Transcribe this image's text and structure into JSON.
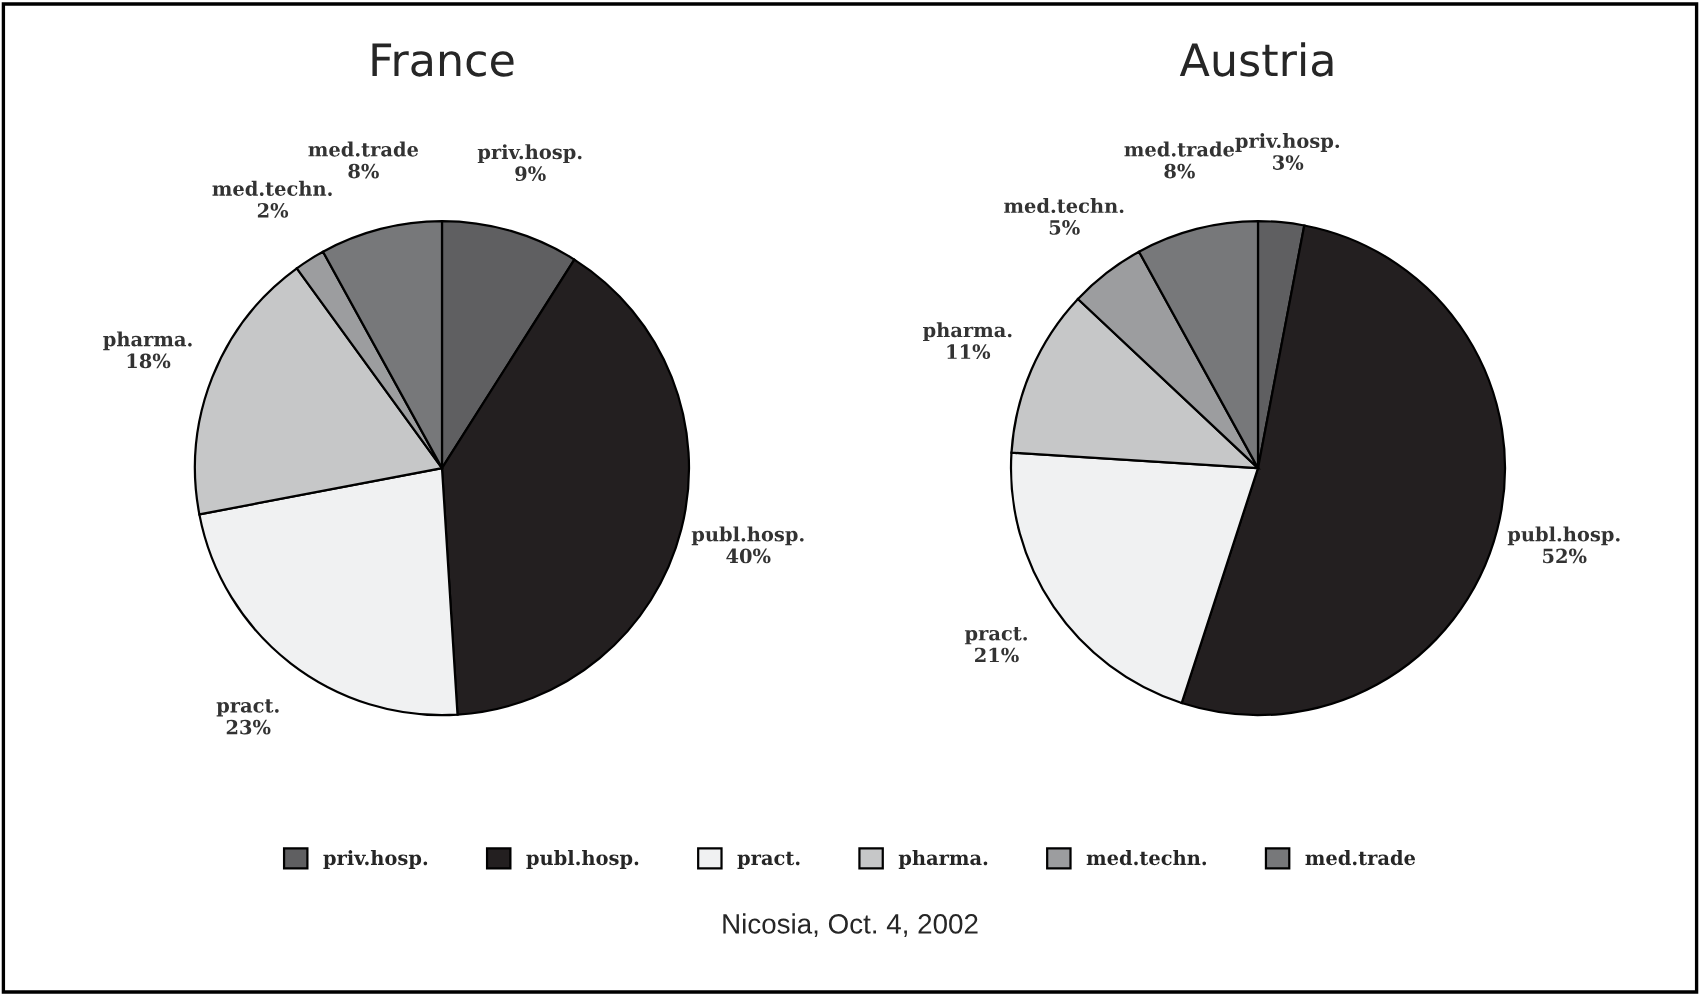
{
  "chart_data": [
    {
      "type": "pie",
      "title": "France",
      "categories": [
        "priv.hosp.",
        "publ.hosp.",
        "pract.",
        "pharma.",
        "med.techn.",
        "med.trade"
      ],
      "values": [
        9,
        40,
        23,
        18,
        2,
        8
      ],
      "value_labels": [
        "9%",
        "40%",
        "23%",
        "18%",
        "2%",
        "8%"
      ],
      "colors": [
        "#5f5f61",
        "#231f20",
        "#f0f1f2",
        "#c6c7c8",
        "#9c9d9f",
        "#77787a"
      ],
      "legend": "bottom",
      "annotations": [
        "Nicosia, Oct. 4, 2002"
      ]
    },
    {
      "type": "pie",
      "title": "Austria",
      "categories": [
        "priv.hosp.",
        "publ.hosp.",
        "pract.",
        "pharma.",
        "med.techn.",
        "med.trade"
      ],
      "values": [
        3,
        52,
        21,
        11,
        5,
        8
      ],
      "value_labels": [
        "3%",
        "52%",
        "21%",
        "11%",
        "5%",
        "8%"
      ],
      "colors": [
        "#5f5f61",
        "#231f20",
        "#f0f1f2",
        "#c6c7c8",
        "#9c9d9f",
        "#77787a"
      ]
    }
  ]
}
